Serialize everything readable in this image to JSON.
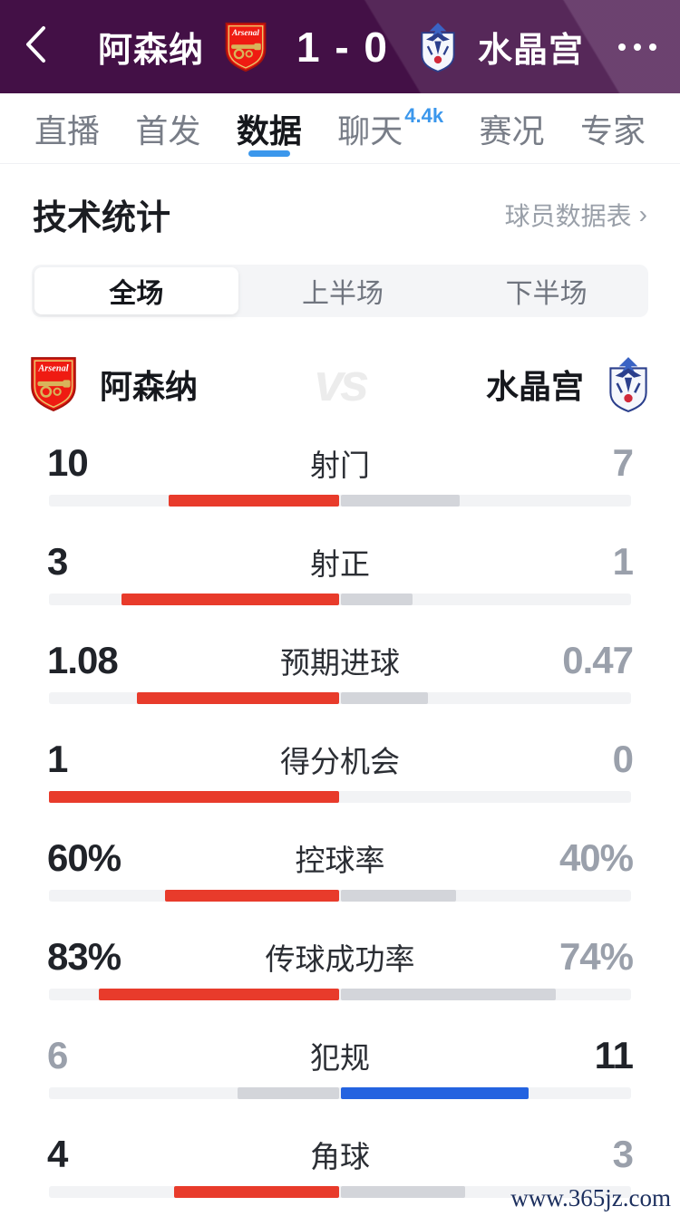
{
  "header": {
    "home_team": "阿森纳",
    "score": "1 - 0",
    "away_team": "水晶宫",
    "bg_color": "#431046"
  },
  "tabs": [
    {
      "label": "直播",
      "active": false,
      "badge": ""
    },
    {
      "label": "首发",
      "active": false,
      "badge": ""
    },
    {
      "label": "数据",
      "active": true,
      "badge": ""
    },
    {
      "label": "聊天",
      "active": false,
      "badge": "4.4k"
    },
    {
      "label": "赛况",
      "active": false,
      "badge": ""
    },
    {
      "label": "专家",
      "active": false,
      "badge": ""
    }
  ],
  "section": {
    "title": "技术统计",
    "link_label": "球员数据表",
    "link_chevron": "›"
  },
  "segmented": {
    "options": [
      {
        "label": "全场",
        "active": true
      },
      {
        "label": "上半场",
        "active": false
      },
      {
        "label": "下半场",
        "active": false
      }
    ]
  },
  "teams": {
    "home_name": "阿森纳",
    "away_name": "水晶宫",
    "vs_label": "vs"
  },
  "chart_data": {
    "type": "bar",
    "title": "技术统计 全场 阿森纳 vs 水晶宫",
    "categories": [
      "射门",
      "射正",
      "预期进球",
      "得分机会",
      "控球率",
      "传球成功率",
      "犯规",
      "角球"
    ],
    "series": [
      {
        "name": "阿森纳",
        "values": [
          10,
          3,
          1.08,
          1,
          "60%",
          "83%",
          6,
          4
        ]
      },
      {
        "name": "水晶宫",
        "values": [
          7,
          1,
          0.47,
          0,
          "40%",
          "74%",
          11,
          3
        ]
      }
    ]
  },
  "stats": {
    "rows": [
      {
        "label": "射门",
        "home": "10",
        "away": "7",
        "home_fill": 0.588,
        "away_fill": 0.412,
        "leader": "home"
      },
      {
        "label": "射正",
        "home": "3",
        "away": "1",
        "home_fill": 0.75,
        "away_fill": 0.25,
        "leader": "home"
      },
      {
        "label": "预期进球",
        "home": "1.08",
        "away": "0.47",
        "home_fill": 0.697,
        "away_fill": 0.303,
        "leader": "home"
      },
      {
        "label": "得分机会",
        "home": "1",
        "away": "0",
        "home_fill": 1.0,
        "away_fill": 0.0,
        "leader": "home"
      },
      {
        "label": "控球率",
        "home": "60%",
        "away": "40%",
        "home_fill": 0.6,
        "away_fill": 0.4,
        "leader": "home"
      },
      {
        "label": "传球成功率",
        "home": "83%",
        "away": "74%",
        "home_fill": 0.83,
        "away_fill": 0.74,
        "leader": "home"
      },
      {
        "label": "犯规",
        "home": "6",
        "away": "11",
        "home_fill": 0.353,
        "away_fill": 0.647,
        "leader": "away"
      },
      {
        "label": "角球",
        "home": "4",
        "away": "3",
        "home_fill": 0.571,
        "away_fill": 0.429,
        "leader": "home"
      }
    ]
  },
  "theme": {
    "home_bar_color": "#e83b2b",
    "away_bar_color": "#2463e0",
    "neutral_bar_color": "#d3d5da",
    "track_color": "#f2f3f5",
    "accent_blue": "#3b97ec"
  },
  "watermark": "www.365jz.com"
}
